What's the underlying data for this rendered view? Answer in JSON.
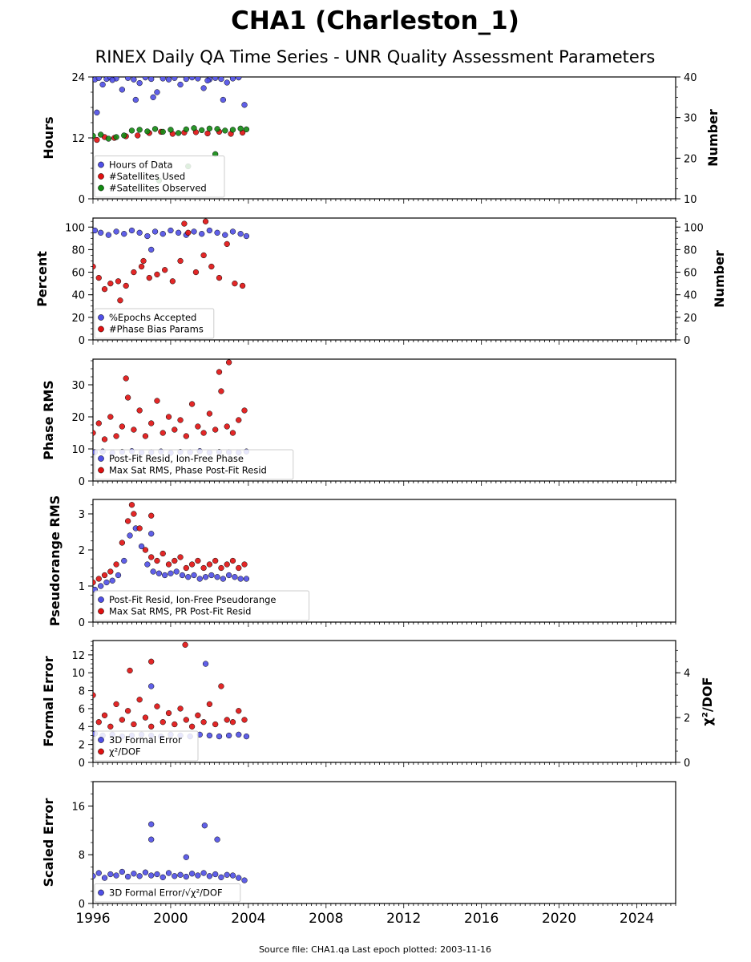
{
  "title": "CHA1 (Charleston_1)",
  "subtitle": "RINEX Daily QA Time Series - UNR Quality Assessment Parameters",
  "footer": "Source file: CHA1.qa Last epoch plotted: 2003-11-16",
  "colors": {
    "blue": "#4f4fe6",
    "red": "#e01010",
    "green": "#118a11",
    "edge": "#000000"
  },
  "chart_data": [
    {
      "type": "scatter",
      "xlim": [
        1996,
        2026
      ],
      "xticks": [
        1996,
        2000,
        2004,
        2008,
        2012,
        2016,
        2020,
        2024
      ],
      "ylabel": "Hours",
      "ylim": [
        0,
        24
      ],
      "yticks": [
        0,
        12,
        24
      ],
      "ylabel_right": "Number",
      "ylim_right": [
        10,
        40
      ],
      "yticks_right": [
        10,
        20,
        30,
        40
      ],
      "legend": "lower-left",
      "series": [
        {
          "name": "Hours of Data",
          "color": "blue",
          "axis": "left",
          "x": [
            1996.1,
            1996.3,
            1996.5,
            1996.7,
            1996.9,
            1997.2,
            1997.5,
            1997.8,
            1998.1,
            1998.4,
            1998.7,
            1999.0,
            1999.3,
            1999.6,
            1999.9,
            2000.2,
            2000.5,
            2000.8,
            2001.1,
            2001.4,
            2001.7,
            2002.0,
            2002.3,
            2002.6,
            2002.9,
            2003.2,
            2003.5,
            2003.8,
            1996.2,
            1997.0,
            1998.2,
            1999.1,
            2001.9,
            2002.7
          ],
          "y": [
            23.5,
            23.8,
            22.5,
            23.6,
            23.9,
            23.7,
            21.5,
            23.8,
            23.5,
            22.8,
            23.9,
            23.6,
            21.0,
            23.7,
            23.5,
            23.8,
            22.5,
            23.6,
            23.9,
            23.7,
            21.8,
            23.5,
            23.8,
            23.6,
            22.9,
            23.7,
            23.9,
            18.5,
            17.0,
            23.4,
            19.5,
            20.0,
            23.3,
            19.5
          ]
        },
        {
          "name": "#Satellites Used",
          "color": "red",
          "axis": "right",
          "x": [
            1996.2,
            1996.6,
            1997.1,
            1997.7,
            1998.3,
            1998.9,
            1999.5,
            2000.1,
            2000.7,
            2001.3,
            2001.9,
            2002.5,
            2003.1,
            2003.7
          ],
          "y": [
            24.5,
            25.2,
            25.0,
            25.4,
            25.6,
            26.2,
            26.5,
            26.0,
            26.3,
            26.4,
            26.1,
            26.5,
            26.0,
            26.3
          ]
        },
        {
          "name": "#Satellites Observed",
          "color": "green",
          "axis": "right",
          "x": [
            1996.0,
            1996.4,
            1996.8,
            1997.2,
            1997.6,
            1998.0,
            1998.4,
            1998.8,
            1999.2,
            1999.6,
            2000.0,
            2000.4,
            2000.8,
            2001.2,
            2001.6,
            2002.0,
            2002.4,
            2002.8,
            2003.2,
            2003.6,
            2003.9,
            1999.4,
            2000.9,
            2002.3
          ],
          "y": [
            25.5,
            25.8,
            24.8,
            25.2,
            25.6,
            26.8,
            27.0,
            26.6,
            27.2,
            26.5,
            27.0,
            26.2,
            27.1,
            27.4,
            26.9,
            27.3,
            27.2,
            26.8,
            27.0,
            27.3,
            27.1,
            14.5,
            18.0,
            21.0
          ]
        }
      ]
    },
    {
      "type": "scatter",
      "xlim": [
        1996,
        2026
      ],
      "xticks": [
        1996,
        2000,
        2004,
        2008,
        2012,
        2016,
        2020,
        2024
      ],
      "ylabel": "Percent",
      "ylim": [
        0,
        108
      ],
      "yticks": [
        0,
        20,
        40,
        60,
        80,
        100
      ],
      "ylabel_right": "Number",
      "ylim_right": [
        0,
        108
      ],
      "yticks_right": [
        0,
        20,
        40,
        60,
        80,
        100
      ],
      "legend": "lower-left",
      "series": [
        {
          "name": "%Epochs Accepted",
          "color": "blue",
          "axis": "left",
          "x": [
            1996.1,
            1996.4,
            1996.8,
            1997.2,
            1997.6,
            1998.0,
            1998.4,
            1998.8,
            1999.2,
            1999.6,
            2000.0,
            2000.4,
            2000.8,
            2001.2,
            2001.6,
            2002.0,
            2002.4,
            2002.8,
            2003.2,
            2003.6,
            2003.9,
            1999.0
          ],
          "y": [
            97,
            95,
            93,
            96,
            94,
            97,
            95,
            92,
            96,
            94,
            97,
            95,
            93,
            96,
            94,
            97,
            95,
            93,
            96,
            94,
            92,
            80
          ]
        },
        {
          "name": "#Phase Bias Params",
          "color": "red",
          "axis": "right",
          "x": [
            1996.0,
            1996.3,
            1996.6,
            1996.9,
            1997.3,
            1997.7,
            1998.1,
            1998.5,
            1998.9,
            1999.3,
            1999.7,
            2000.1,
            2000.5,
            2000.9,
            2001.3,
            2001.7,
            2002.1,
            2002.5,
            2002.9,
            2003.3,
            2003.7,
            2000.7,
            2001.8,
            1997.4,
            1998.6
          ],
          "y": [
            65,
            55,
            45,
            50,
            52,
            48,
            60,
            65,
            55,
            58,
            62,
            52,
            70,
            95,
            60,
            75,
            65,
            55,
            85,
            50,
            48,
            103,
            105,
            35,
            70
          ]
        }
      ]
    },
    {
      "type": "scatter",
      "xlim": [
        1996,
        2026
      ],
      "xticks": [
        1996,
        2000,
        2004,
        2008,
        2012,
        2016,
        2020,
        2024
      ],
      "ylabel": "Phase RMS",
      "ylim": [
        0,
        38
      ],
      "yticks": [
        0,
        10,
        20,
        30
      ],
      "legend": "lower-left",
      "series": [
        {
          "name": "Post-Fit Resid, Ion-Free Phase",
          "color": "blue",
          "axis": "left",
          "x": [
            1996.1,
            1996.5,
            1997.0,
            1997.5,
            1998.0,
            1998.5,
            1999.0,
            1999.5,
            2000.0,
            2000.5,
            2001.0,
            2001.5,
            2002.0,
            2002.5,
            2003.0,
            2003.5,
            2003.9
          ],
          "y": [
            9.0,
            9.2,
            8.8,
            9.1,
            9.3,
            8.9,
            9.0,
            9.2,
            8.8,
            9.1,
            9.0,
            9.3,
            8.9,
            9.1,
            9.0,
            8.9,
            9.2
          ]
        },
        {
          "name": "Max Sat RMS, Phase Post-Fit Resid",
          "color": "red",
          "axis": "left",
          "x": [
            1996.0,
            1996.3,
            1996.6,
            1996.9,
            1997.2,
            1997.5,
            1997.8,
            1998.1,
            1998.4,
            1998.7,
            1999.0,
            1999.3,
            1999.6,
            1999.9,
            2000.2,
            2000.5,
            2000.8,
            2001.1,
            2001.4,
            2001.7,
            2002.0,
            2002.3,
            2002.6,
            2002.9,
            2003.2,
            2003.5,
            2003.8,
            1997.7,
            2002.5,
            2003.0
          ],
          "y": [
            15,
            18,
            13,
            20,
            14,
            17,
            26,
            16,
            22,
            14,
            18,
            25,
            15,
            20,
            16,
            19,
            14,
            24,
            17,
            15,
            21,
            16,
            28,
            17,
            15,
            19,
            22,
            32,
            34,
            37
          ]
        }
      ]
    },
    {
      "type": "scatter",
      "xlim": [
        1996,
        2026
      ],
      "xticks": [
        1996,
        2000,
        2004,
        2008,
        2012,
        2016,
        2020,
        2024
      ],
      "ylabel": "Pseudorange RMS",
      "ylim": [
        0,
        3.4
      ],
      "yticks": [
        0,
        1,
        2,
        3
      ],
      "legend": "lower-left",
      "series": [
        {
          "name": "Post-Fit Resid, Ion-Free Pseudorange",
          "color": "blue",
          "axis": "left",
          "x": [
            1996.1,
            1996.4,
            1996.7,
            1997.0,
            1997.3,
            1997.6,
            1997.9,
            1998.2,
            1998.5,
            1998.8,
            1999.1,
            1999.4,
            1999.7,
            2000.0,
            2000.3,
            2000.6,
            2000.9,
            2001.2,
            2001.5,
            2001.8,
            2002.1,
            2002.4,
            2002.7,
            2003.0,
            2003.3,
            2003.6,
            2003.9,
            1999.0
          ],
          "y": [
            0.9,
            1.0,
            1.1,
            1.15,
            1.3,
            1.7,
            2.4,
            2.6,
            2.1,
            1.6,
            1.4,
            1.35,
            1.3,
            1.35,
            1.4,
            1.3,
            1.25,
            1.3,
            1.2,
            1.25,
            1.3,
            1.25,
            1.2,
            1.3,
            1.25,
            1.2,
            1.2,
            2.45
          ]
        },
        {
          "name": "Max Sat RMS, PR Post-Fit Resid",
          "color": "red",
          "axis": "left",
          "x": [
            1996.0,
            1996.3,
            1996.6,
            1996.9,
            1997.2,
            1997.5,
            1997.8,
            1998.1,
            1998.4,
            1998.7,
            1999.0,
            1999.3,
            1999.6,
            1999.9,
            2000.2,
            2000.5,
            2000.8,
            2001.1,
            2001.4,
            2001.7,
            2002.0,
            2002.3,
            2002.6,
            2002.9,
            2003.2,
            2003.5,
            2003.8,
            1998.0,
            1999.0
          ],
          "y": [
            1.1,
            1.2,
            1.3,
            1.4,
            1.6,
            2.2,
            2.8,
            3.0,
            2.6,
            2.0,
            1.8,
            1.7,
            1.9,
            1.6,
            1.7,
            1.8,
            1.5,
            1.6,
            1.7,
            1.5,
            1.6,
            1.7,
            1.5,
            1.6,
            1.7,
            1.5,
            1.6,
            3.25,
            2.95
          ]
        }
      ]
    },
    {
      "type": "scatter",
      "xlim": [
        1996,
        2026
      ],
      "xticks": [
        1996,
        2000,
        2004,
        2008,
        2012,
        2016,
        2020,
        2024
      ],
      "ylabel": "Formal Error",
      "ylim": [
        0,
        13.6
      ],
      "yticks": [
        0,
        2,
        4,
        6,
        8,
        10,
        12
      ],
      "ylabel_right": "χ²/DOF",
      "ylim_right": [
        0,
        5.44
      ],
      "yticks_right": [
        0,
        2,
        4
      ],
      "legend": "lower-left",
      "series": [
        {
          "name": "3D Formal Error",
          "color": "blue",
          "axis": "left",
          "x": [
            1996.1,
            1996.5,
            1997.0,
            1997.5,
            1998.0,
            1998.5,
            1999.0,
            1999.5,
            2000.0,
            2000.5,
            2001.0,
            2001.5,
            2002.0,
            2002.5,
            2003.0,
            2003.5,
            2003.9,
            1999.0,
            2001.8
          ],
          "y": [
            3.2,
            3.0,
            3.1,
            2.9,
            3.0,
            3.1,
            3.0,
            2.9,
            3.1,
            3.0,
            2.9,
            3.1,
            3.0,
            2.9,
            3.0,
            3.1,
            2.9,
            8.5,
            11.0
          ]
        },
        {
          "name": "χ²/DOF",
          "color": "red",
          "axis": "right",
          "x": [
            1996.0,
            1996.3,
            1996.6,
            1996.9,
            1997.2,
            1997.5,
            1997.8,
            1998.1,
            1998.4,
            1998.7,
            1999.0,
            1999.3,
            1999.6,
            1999.9,
            2000.2,
            2000.5,
            2000.8,
            2001.1,
            2001.4,
            2001.7,
            2002.0,
            2002.3,
            2002.6,
            2002.9,
            2003.2,
            2003.5,
            2003.8,
            2000.75,
            1997.9,
            1999.0
          ],
          "y": [
            3.0,
            1.8,
            2.1,
            1.6,
            2.6,
            1.9,
            2.3,
            1.7,
            2.8,
            2.0,
            1.6,
            2.5,
            1.8,
            2.2,
            1.7,
            2.4,
            1.9,
            1.6,
            2.1,
            1.8,
            2.6,
            1.7,
            3.4,
            1.9,
            1.8,
            2.3,
            1.9,
            5.25,
            4.1,
            4.5
          ]
        }
      ]
    },
    {
      "type": "scatter",
      "xlim": [
        1996,
        2026
      ],
      "xticks": [
        1996,
        2000,
        2004,
        2008,
        2012,
        2016,
        2020,
        2024
      ],
      "xtick_labels": [
        "1996",
        "2000",
        "2004",
        "2008",
        "2012",
        "2016",
        "2020",
        "2024"
      ],
      "ylabel": "Scaled Error",
      "ylim": [
        0,
        20
      ],
      "yticks": [
        0,
        8,
        16
      ],
      "legend": "lower-left",
      "series": [
        {
          "name": "3D Formal Error/√χ²/DOF",
          "color": "blue",
          "axis": "left",
          "x": [
            1996.0,
            1996.3,
            1996.6,
            1996.9,
            1997.2,
            1997.5,
            1997.8,
            1998.1,
            1998.4,
            1998.7,
            1999.0,
            1999.3,
            1999.6,
            1999.9,
            2000.2,
            2000.5,
            2000.8,
            2001.1,
            2001.4,
            2001.7,
            2002.0,
            2002.3,
            2002.6,
            2002.9,
            2003.2,
            2003.5,
            2003.8,
            1999.0,
            1999.0,
            2001.75,
            2002.4,
            2000.8
          ],
          "y": [
            4.5,
            5.0,
            4.2,
            4.8,
            4.6,
            5.2,
            4.4,
            4.9,
            4.5,
            5.1,
            4.6,
            4.8,
            4.3,
            5.0,
            4.5,
            4.7,
            4.4,
            4.9,
            4.6,
            5.0,
            4.5,
            4.8,
            4.3,
            4.7,
            4.6,
            4.2,
            3.8,
            13.0,
            10.5,
            12.8,
            10.5,
            7.6
          ]
        }
      ]
    }
  ]
}
